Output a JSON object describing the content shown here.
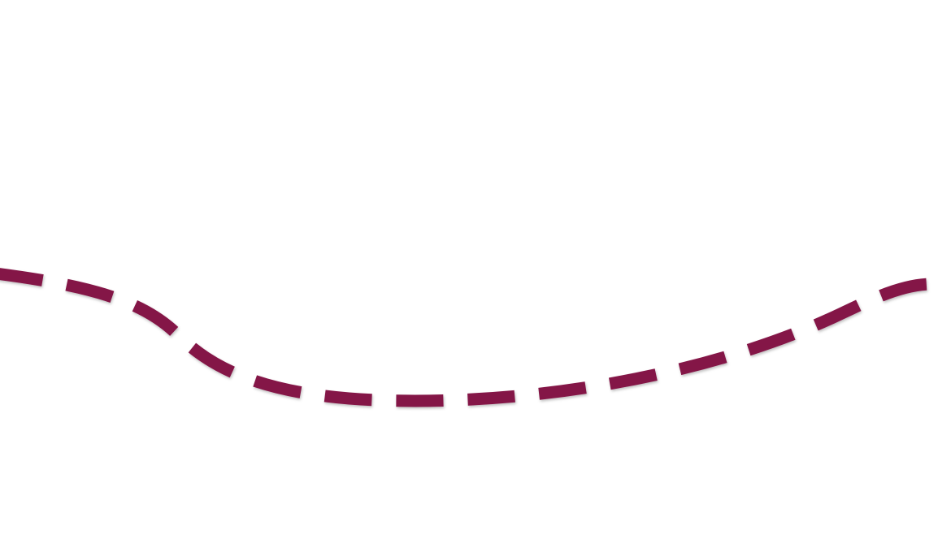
{
  "slide": {
    "background_color": "#ffffff",
    "dashed_curve": {
      "color": "#841747",
      "style": "dashed"
    }
  }
}
